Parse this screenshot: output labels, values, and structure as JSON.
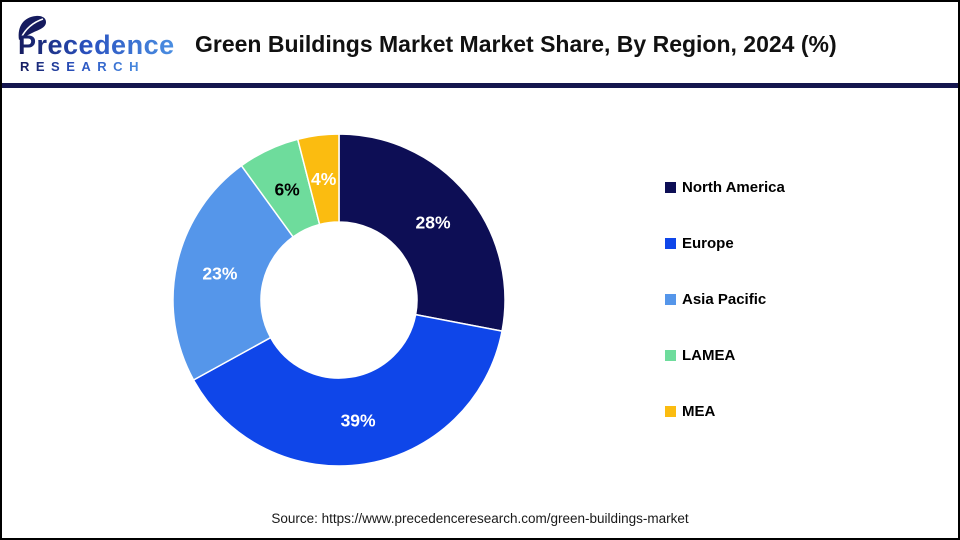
{
  "header": {
    "logo": {
      "name": "Precedence",
      "subtitle": "RESEARCH",
      "gradient_start": "#151B5E",
      "gradient_mid": "#2A52C0",
      "gradient_end": "#4B8FE2"
    },
    "title": "Green Buildings Market Market Share, By Region, 2024 (%)"
  },
  "chart_data": {
    "type": "pie",
    "subtype": "donut",
    "title": "Green Buildings Market Market Share, By Region, 2024 (%)",
    "unit": "%",
    "start_angle_deg": 0,
    "direction": "clockwise",
    "inner_radius_ratio": 0.47,
    "legend_position": "right",
    "categories": [
      "North America",
      "Europe",
      "Asia Pacific",
      "LAMEA",
      "MEA"
    ],
    "values": [
      28,
      39,
      23,
      6,
      4
    ],
    "labels": [
      "28%",
      "39%",
      "23%",
      "6%",
      "4%"
    ],
    "colors": [
      "#0D0E55",
      "#0F46E9",
      "#5596EA",
      "#6EDC9C",
      "#FBBC10"
    ],
    "label_colors": [
      "#FFFFFF",
      "#FFFFFF",
      "#FFFFFF",
      "#000000",
      "#FFFFFF"
    ]
  },
  "footer": {
    "source": "Source: https://www.precedenceresearch.com/green-buildings-market"
  },
  "theme": {
    "divider_color": "#14164E",
    "border_color": "#000000",
    "background": "#FFFFFF"
  }
}
